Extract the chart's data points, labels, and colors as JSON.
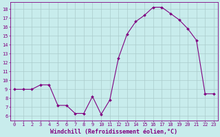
{
  "x": [
    0,
    1,
    2,
    3,
    4,
    5,
    6,
    7,
    8,
    9,
    10,
    11,
    12,
    13,
    14,
    15,
    16,
    17,
    18,
    19,
    20,
    21,
    22,
    23
  ],
  "y": [
    9.0,
    9.0,
    9.0,
    9.5,
    9.5,
    7.2,
    7.2,
    6.3,
    6.3,
    8.2,
    6.2,
    7.8,
    12.5,
    15.2,
    16.6,
    17.3,
    18.2,
    18.2,
    17.5,
    16.8,
    15.8,
    14.5,
    8.5,
    8.5
  ],
  "line_color": "#800080",
  "marker": "D",
  "marker_size": 2.0,
  "bg_color": "#c8ecec",
  "grid_color": "#aacccc",
  "xlabel": "Windchill (Refroidissement éolien,°C)",
  "xlim": [
    -0.5,
    23.5
  ],
  "ylim": [
    5.5,
    18.8
  ],
  "yticks": [
    6,
    7,
    8,
    9,
    10,
    11,
    12,
    13,
    14,
    15,
    16,
    17,
    18
  ],
  "xticks": [
    0,
    1,
    2,
    3,
    4,
    5,
    6,
    7,
    8,
    9,
    10,
    11,
    12,
    13,
    14,
    15,
    16,
    17,
    18,
    19,
    20,
    21,
    22,
    23
  ],
  "label_color": "#800080",
  "tick_label_fontsize": 5.0,
  "xlabel_fontsize": 6.0
}
